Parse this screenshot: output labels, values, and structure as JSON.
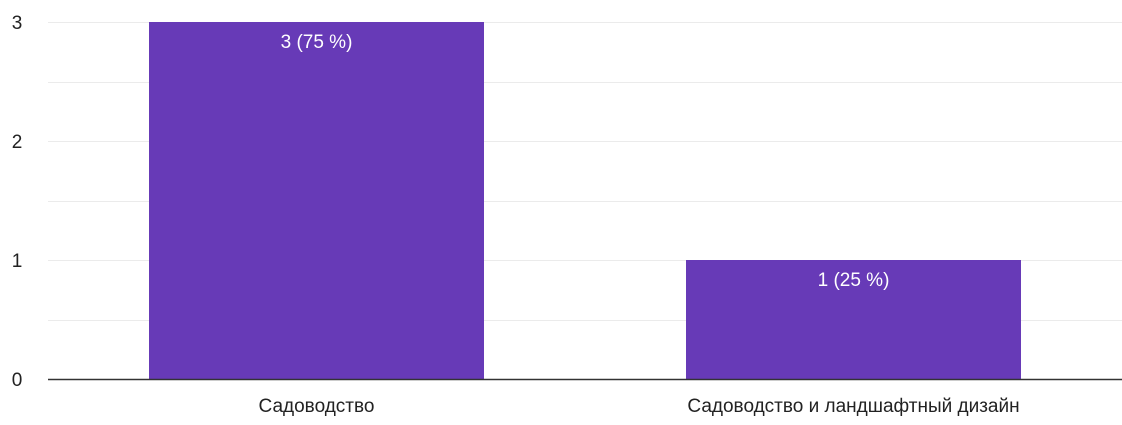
{
  "chart_data": {
    "type": "bar",
    "categories": [
      "Садоводство",
      "Садоводство и ландшафтный дизайн"
    ],
    "values": [
      3,
      1
    ],
    "data_labels": [
      "3 (75 %)",
      "1 (25 %)"
    ],
    "ylim": [
      0,
      3
    ],
    "yticks": [
      0,
      1,
      2,
      3
    ],
    "minor_gridlines": true,
    "grid": true,
    "legend": "none",
    "bar_color": "#673ab7",
    "grid_color": "#ebebeb",
    "axis_color": "#333333",
    "text_color": "#222222",
    "label_color": "#ffffff"
  }
}
